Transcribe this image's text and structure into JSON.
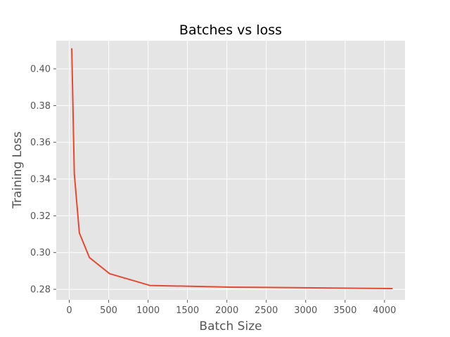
{
  "chart_data": {
    "type": "line",
    "title": "Batches vs loss",
    "xlabel": "Batch Size",
    "ylabel": "Training Loss",
    "xlim": [
      -165,
      4260
    ],
    "ylim": [
      0.2743,
      0.4153
    ],
    "xticks": [
      0,
      500,
      1000,
      1500,
      2000,
      2500,
      3000,
      3500,
      4000
    ],
    "xtick_labels": [
      "0",
      "500",
      "1000",
      "1500",
      "2000",
      "2500",
      "3000",
      "3500",
      "4000"
    ],
    "yticks": [
      0.28,
      0.3,
      0.32,
      0.34,
      0.36,
      0.38,
      0.4
    ],
    "ytick_labels": [
      "0.28",
      "0.30",
      "0.32",
      "0.34",
      "0.36",
      "0.38",
      "0.40"
    ],
    "grid": true,
    "background_color": "#e5e5e5",
    "series": [
      {
        "color": "#e24a33",
        "x": [
          32,
          64,
          128,
          256,
          512,
          1024,
          2048,
          4096
        ],
        "y": [
          0.4109,
          0.343,
          0.3107,
          0.2973,
          0.2885,
          0.2821,
          0.2812,
          0.2804
        ]
      }
    ]
  }
}
